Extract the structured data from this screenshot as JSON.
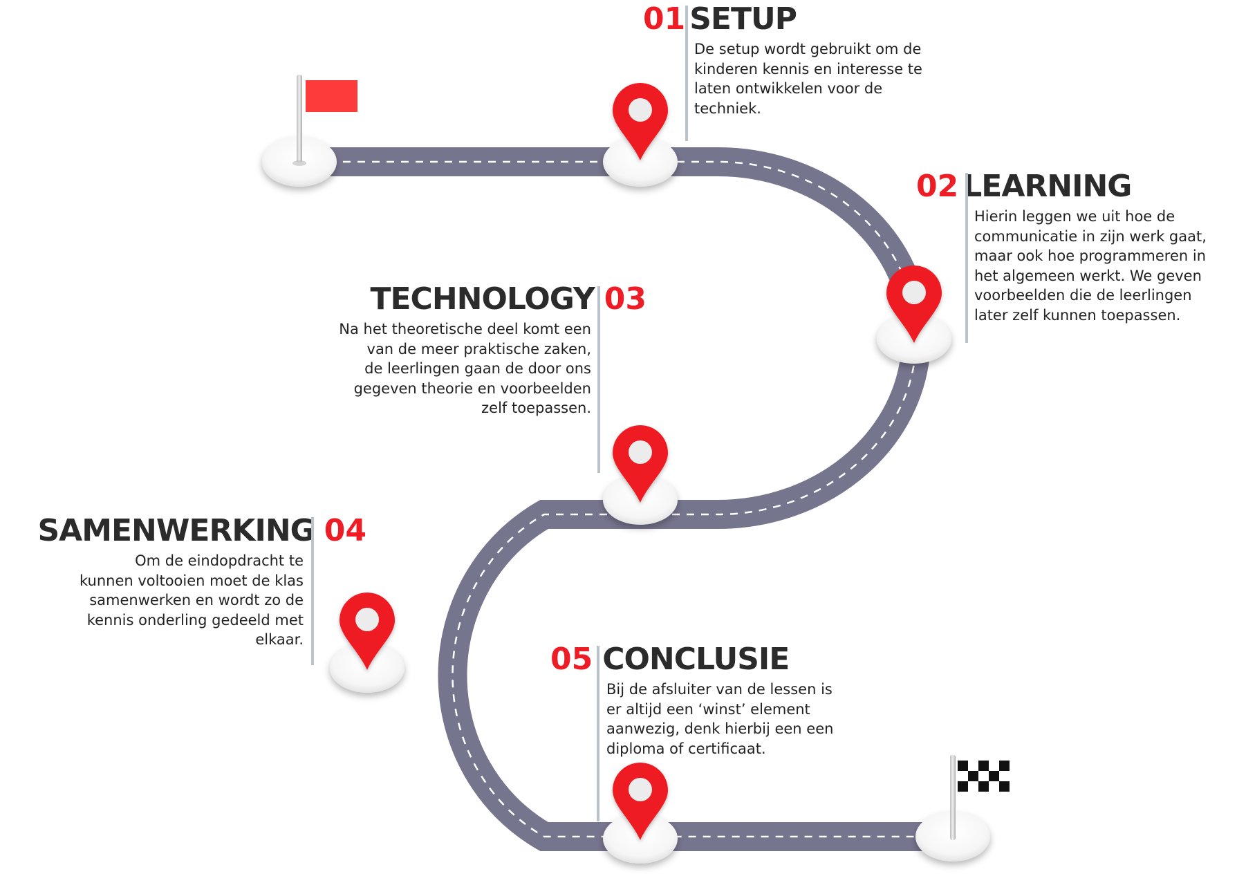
{
  "colors": {
    "road": "#76758e",
    "road_edge": "#6a6a84",
    "lane_dash": "#ffffff",
    "pin": "#ee1c24",
    "pin_hole": "#ececec",
    "start_flag": "#fd3b3b",
    "accent_number": "#ee1c24",
    "title_text": "#2b2b2b",
    "divider": "#b9c3cc"
  },
  "icons": {
    "start": "start-flag-icon",
    "finish": "checkered-flag-icon",
    "marker": "map-pin-icon"
  },
  "steps": [
    {
      "number": "01",
      "title": "SETUP",
      "lines": [
        "De setup wordt gebruikt om de",
        "kinderen kennis en interesse te",
        "laten ontwikkelen voor de",
        "techniek."
      ]
    },
    {
      "number": "02",
      "title": "LEARNING",
      "lines": [
        "Hierin leggen we uit hoe de",
        "communicatie in zijn werk gaat,",
        "maar ook hoe programmeren in",
        "het algemeen werkt. We geven",
        "voorbeelden die de leerlingen",
        "later zelf kunnen toepassen."
      ]
    },
    {
      "number": "03",
      "title": "TECHNOLOGY",
      "lines": [
        "Na het theoretische deel komt een",
        "van de meer praktische zaken,",
        "de leerlingen gaan de door ons",
        "gegeven theorie en voorbeelden",
        "zelf toepassen."
      ]
    },
    {
      "number": "04",
      "title": "SAMENWERKING",
      "lines": [
        "Om de eindopdracht te",
        "kunnen voltooien moet de klas",
        "samenwerken en wordt zo de",
        "kennis onderling gedeeld met",
        "elkaar."
      ]
    },
    {
      "number": "05",
      "title": "CONCLUSIE",
      "lines": [
        "Bij de afsluiter van de lessen is",
        "er altijd een ‘winst’ element",
        "aanwezig, denk hierbij een een",
        "diploma of certificaat."
      ]
    }
  ]
}
